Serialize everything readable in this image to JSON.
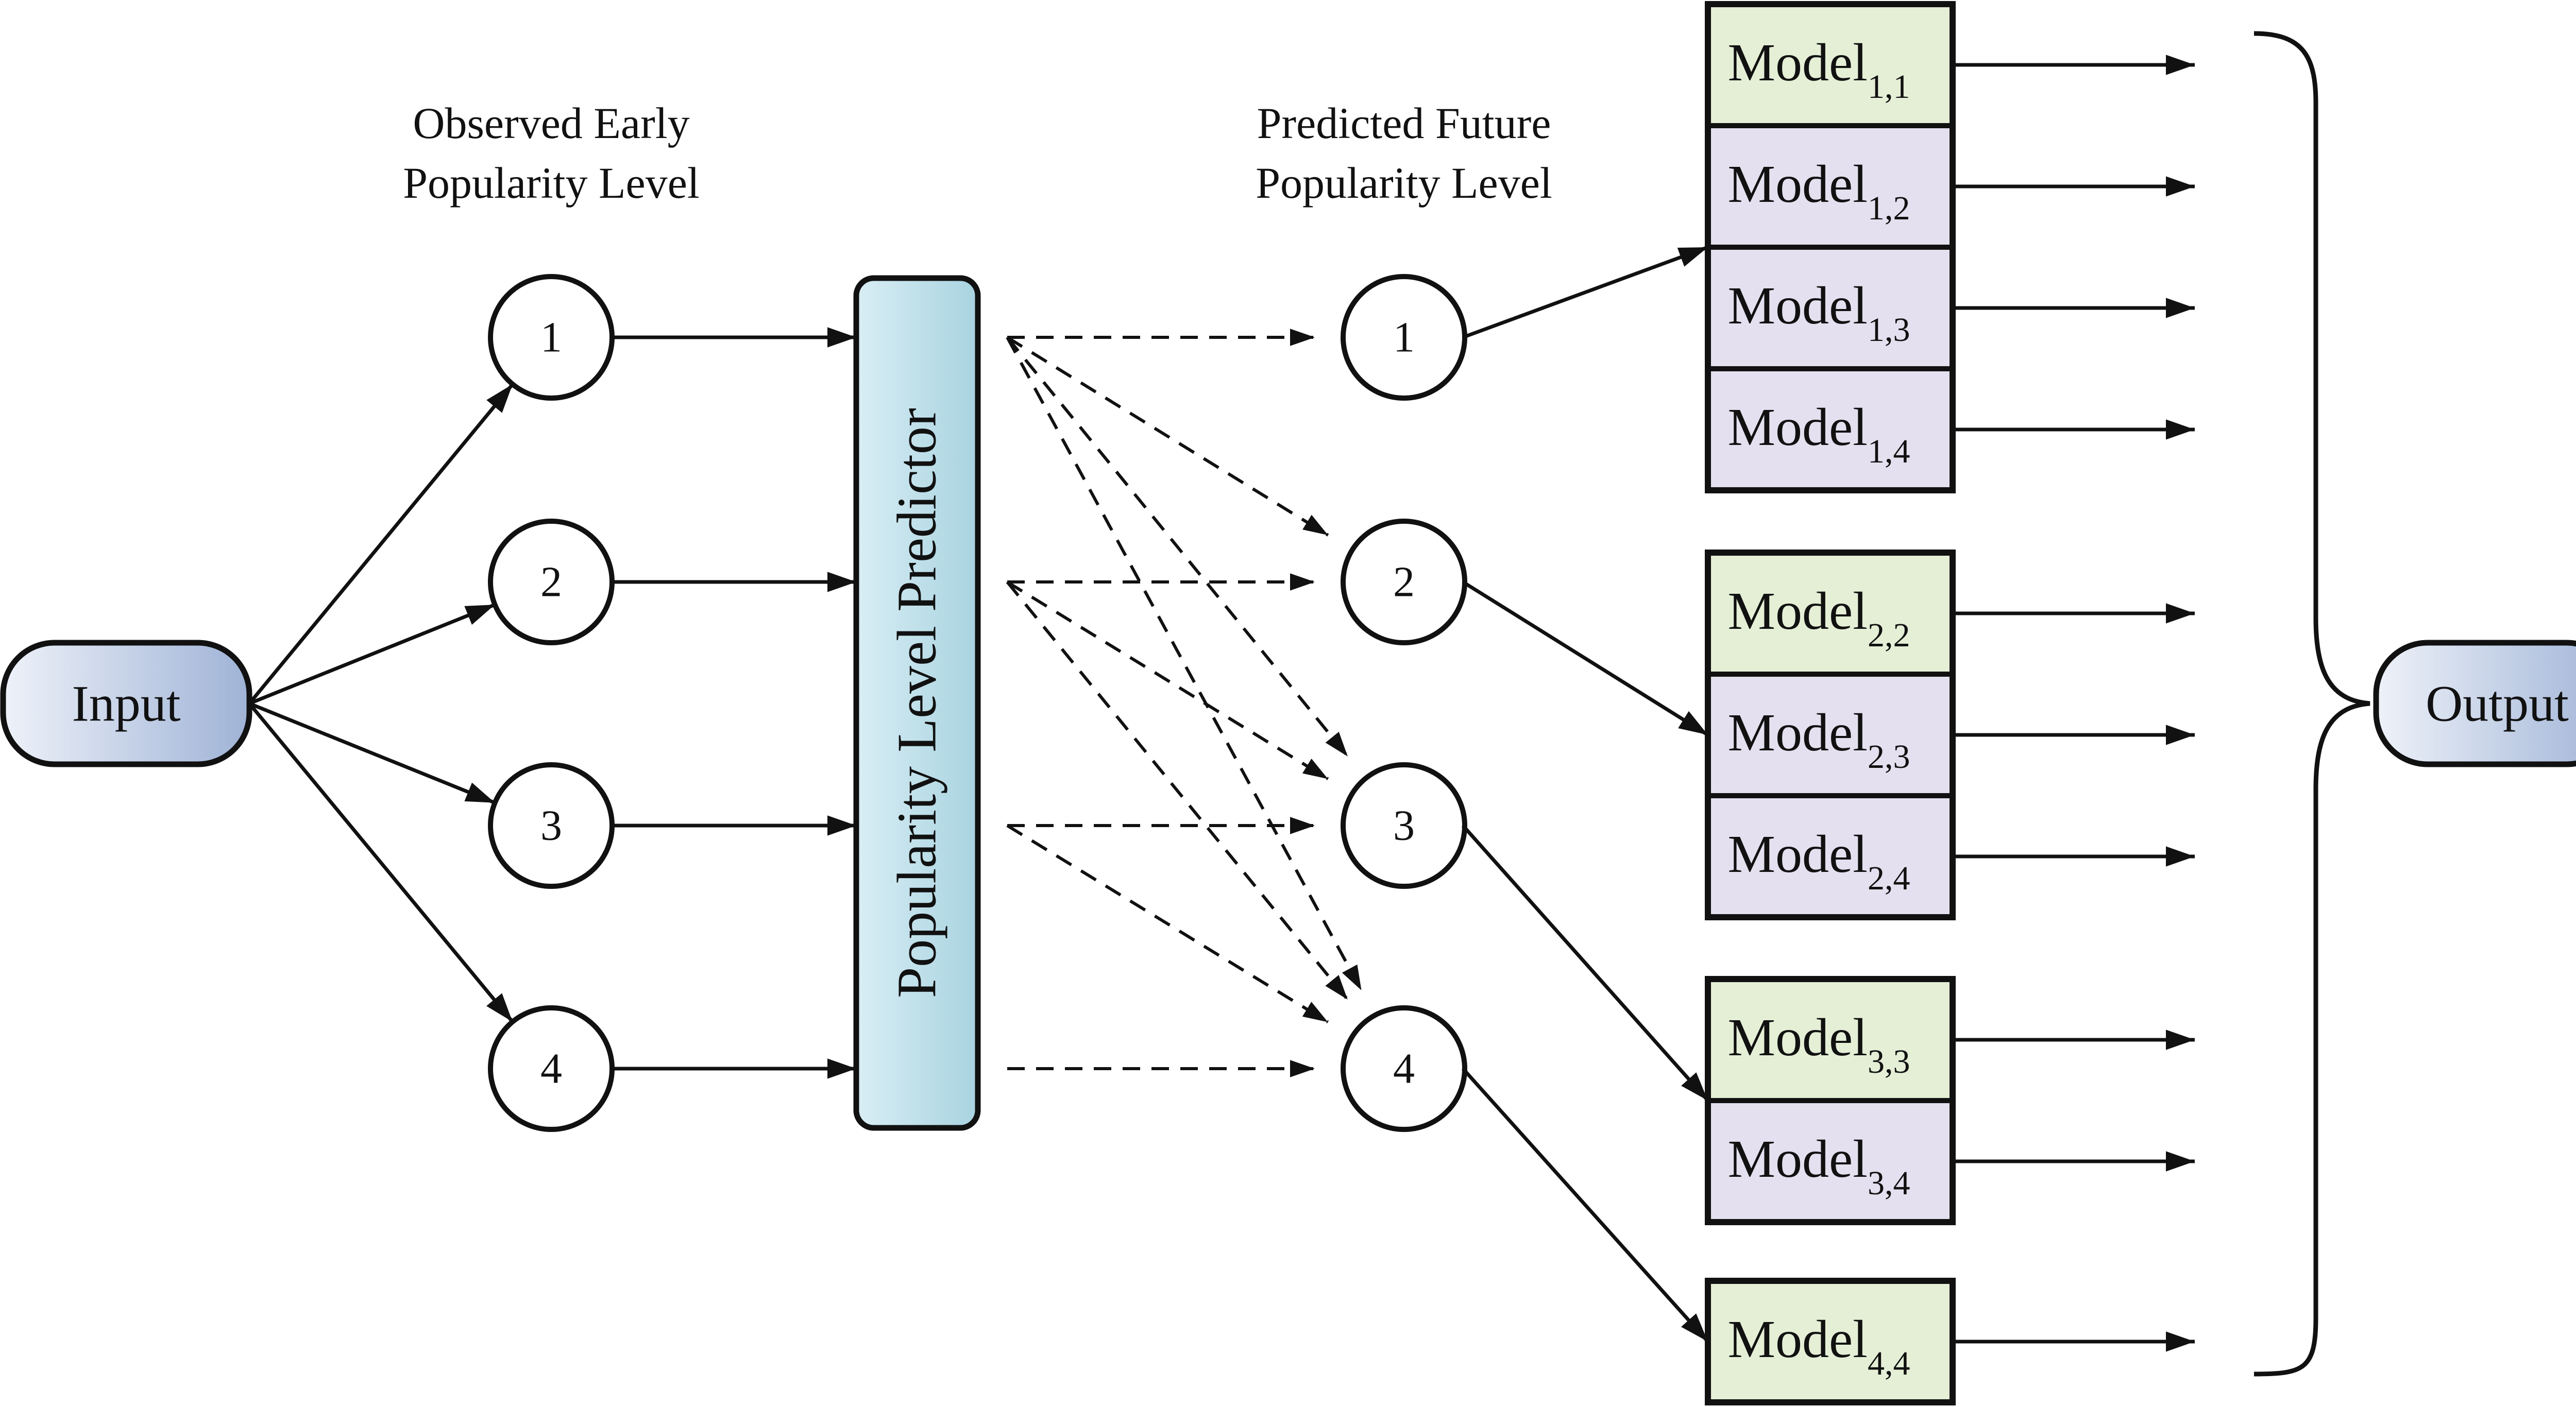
{
  "input_label": "Input",
  "output_label": "Output",
  "observed_header": [
    "Observed Early",
    "Popularity Level"
  ],
  "predicted_header": [
    "Predicted Future",
    "Popularity Level"
  ],
  "predictor_label": "Popularity Level Predictor",
  "observed_levels": [
    "1",
    "2",
    "3",
    "4"
  ],
  "predicted_levels": [
    "1",
    "2",
    "3",
    "4"
  ],
  "model_groups": [
    {
      "level": "1",
      "models": [
        {
          "name": "Model",
          "sub": "1,1"
        },
        {
          "name": "Model",
          "sub": "1,2"
        },
        {
          "name": "Model",
          "sub": "1,3"
        },
        {
          "name": "Model",
          "sub": "1,4"
        }
      ]
    },
    {
      "level": "2",
      "models": [
        {
          "name": "Model",
          "sub": "2,2"
        },
        {
          "name": "Model",
          "sub": "2,3"
        },
        {
          "name": "Model",
          "sub": "2,4"
        }
      ]
    },
    {
      "level": "3",
      "models": [
        {
          "name": "Model",
          "sub": "3,3"
        },
        {
          "name": "Model",
          "sub": "3,4"
        }
      ]
    },
    {
      "level": "4",
      "models": [
        {
          "name": "Model",
          "sub": "4,4"
        }
      ]
    }
  ],
  "colors": {
    "pill_fill_light": "#eef2f9",
    "pill_fill_dark": "#9fb3d6",
    "predictor_fill_light": "#d9eef5",
    "predictor_fill_dark": "#a8d3e0",
    "model_first_fill": "#e4efd6",
    "model_other_fill": "#e4e0ef",
    "stroke": "#111111"
  }
}
